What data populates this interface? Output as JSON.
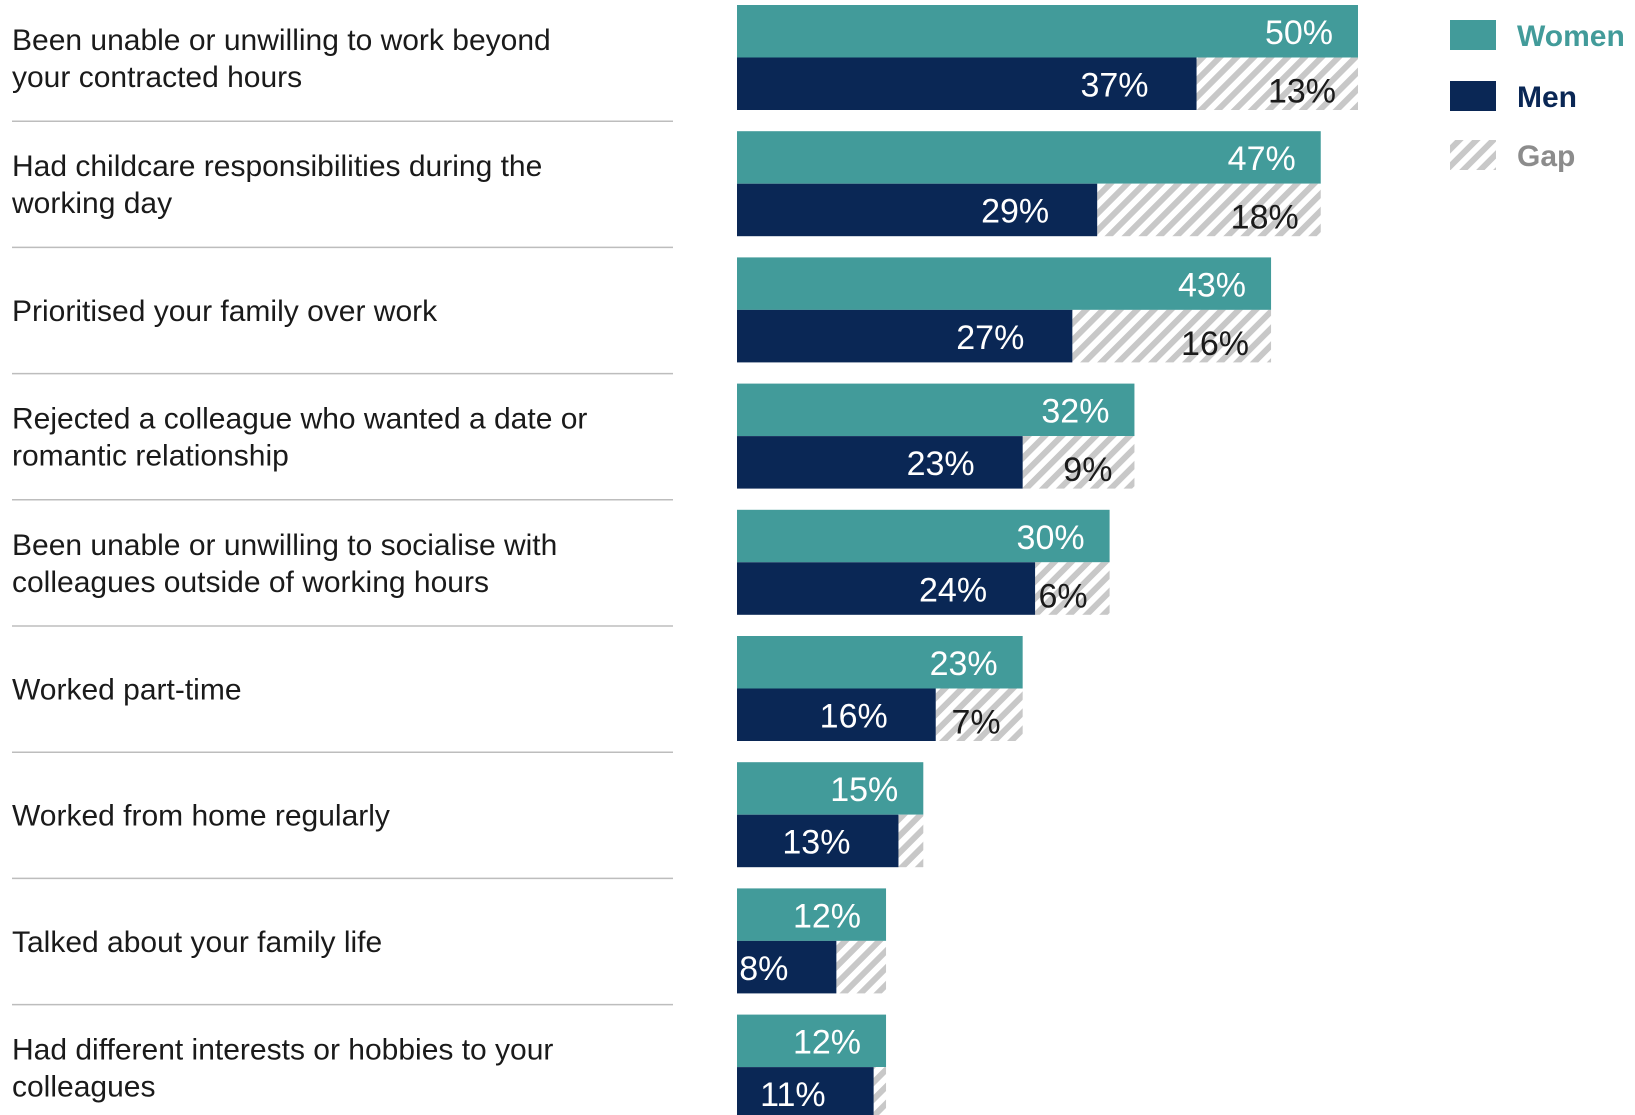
{
  "chart_data": {
    "type": "bar",
    "orientation": "horizontal",
    "grid": false,
    "legend_position": "top-right",
    "colors": {
      "Women": "#429b9a",
      "Men": "#0a2755",
      "Gap": "#c8c8c8",
      "gap_legend_text": "#8c8c8c"
    },
    "categories": [
      [
        "Been unable or unwilling to work beyond",
        "your contracted hours"
      ],
      [
        "Had childcare responsibilities during the",
        "working day"
      ],
      [
        "Prioritised your family over work"
      ],
      [
        "Rejected a colleague who wanted a date or",
        "romantic relationship"
      ],
      [
        "Been unable or unwilling to socialise with",
        "colleagues outside of working hours"
      ],
      [
        "Worked part-time"
      ],
      [
        "Worked from home regularly"
      ],
      [
        "Talked about your family life"
      ],
      [
        "Had different interests or hobbies to your",
        "colleagues"
      ]
    ],
    "series": [
      {
        "name": "Women",
        "values": [
          50,
          47,
          43,
          32,
          30,
          23,
          15,
          12,
          12
        ],
        "labels": [
          "50%",
          "47%",
          "43%",
          "32%",
          "30%",
          "23%",
          "15%",
          "12%",
          "12%"
        ]
      },
      {
        "name": "Men",
        "values": [
          37,
          29,
          27,
          23,
          24,
          16,
          13,
          8,
          11
        ],
        "labels": [
          "37%",
          "29%",
          "27%",
          "23%",
          "24%",
          "16%",
          "13%",
          "8%",
          "11%"
        ]
      },
      {
        "name": "Gap",
        "values": [
          13,
          18,
          16,
          9,
          6,
          7,
          2,
          4,
          1
        ],
        "labels": [
          "13%",
          "18%",
          "16%",
          "9%",
          "6%",
          "7%",
          "",
          "",
          ""
        ]
      }
    ],
    "legend": [
      "Women",
      "Men",
      "Gap"
    ],
    "xlim": [
      0,
      50
    ]
  }
}
